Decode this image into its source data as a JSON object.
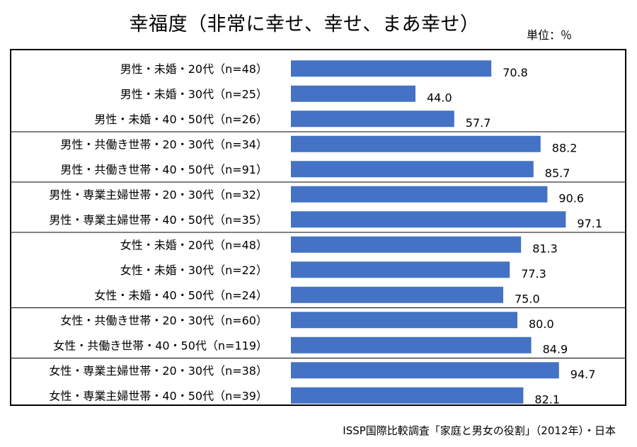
{
  "chart_data": {
    "type": "bar",
    "orientation": "horizontal",
    "title": "幸福度（非常に幸せ、幸せ、まあ幸せ）",
    "unit_label": "単位：％",
    "source": "ISSP国際比較調査「家庭と男女の役割」（2012年）・日本",
    "xlim": [
      0,
      100
    ],
    "bar_color": "#4472C4",
    "categories": [
      "男性・未婚・20代（n=48）",
      "男性・未婚・30代（n=25）",
      "男性・未婚・40・50代（n=26）",
      "男性・共働き世帯・20・30代（n=34）",
      "男性・共働き世帯・40・50代（n=91）",
      "男性・専業主婦世帯・20・30代（n=32）",
      "男性・専業主婦世帯・40・50代（n=35）",
      "女性・未婚・20代（n=48）",
      "女性・未婚・30代（n=22）",
      "女性・未婚・40・50代（n=24）",
      "女性・共働き世帯・20・30代（n=60）",
      "女性・共働き世帯・40・50代（n=119）",
      "女性・専業主婦世帯・20・30代（n=38）",
      "女性・専業主婦世帯・40・50代（n=39）"
    ],
    "values": [
      70.8,
      44.0,
      57.7,
      88.2,
      85.7,
      90.6,
      97.1,
      81.3,
      77.3,
      75.0,
      80.0,
      84.9,
      94.7,
      82.1
    ],
    "value_labels": [
      "70.8",
      "44.0",
      "57.7",
      "88.2",
      "85.7",
      "90.6",
      "97.1",
      "81.3",
      "77.3",
      "75.0",
      "80.0",
      "84.9",
      "94.7",
      "82.1"
    ],
    "group_sizes": [
      3,
      2,
      2,
      3,
      2,
      2
    ]
  }
}
